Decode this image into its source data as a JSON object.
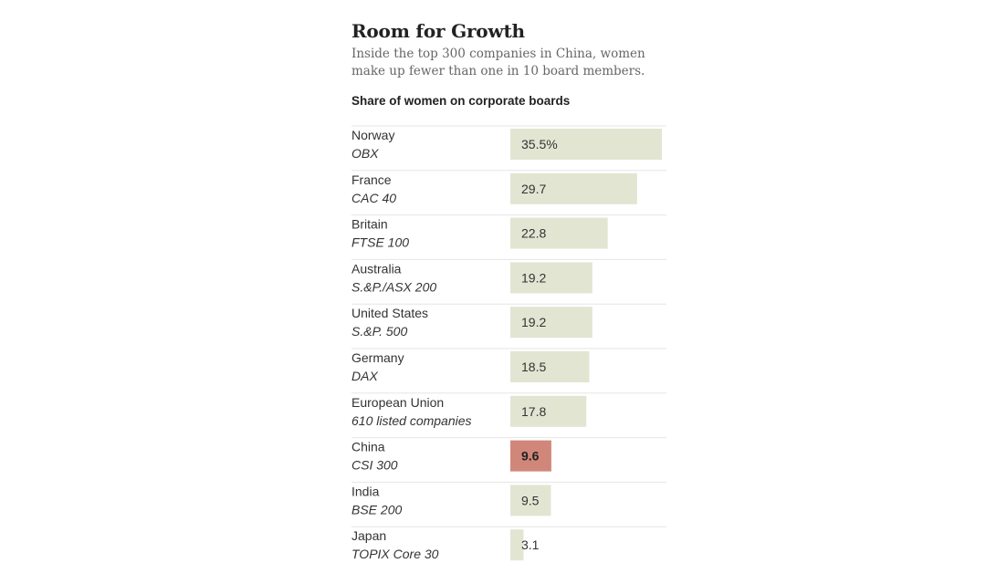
{
  "header": {
    "title": "Room for Growth",
    "subtitle": "Inside the top 300 companies in China, women make up fewer than one in 10 board members."
  },
  "colors": {
    "bar": "#e3e5d3",
    "highlight_bar": "#d0877a",
    "divider": "#e6e6e6"
  },
  "chart_data": {
    "type": "bar",
    "orientation": "horizontal",
    "ylabel": "Share of women on corporate boards",
    "unit": "%",
    "categories": [
      "Norway",
      "France",
      "Britain",
      "Australia",
      "United States",
      "Germany",
      "European Union",
      "China",
      "India",
      "Japan"
    ],
    "indexes": [
      "OBX",
      "CAC 40",
      "FTSE 100",
      "S.&P./ASX 200",
      "S.&P. 500",
      "DAX",
      "610 listed companies",
      "CSI 300",
      "BSE 200",
      "TOPIX Core 30"
    ],
    "values": [
      35.5,
      29.7,
      22.8,
      19.2,
      19.2,
      18.5,
      17.8,
      9.6,
      9.5,
      3.1
    ],
    "value_labels": [
      "35.5%",
      "29.7",
      "22.8",
      "19.2",
      "19.2",
      "18.5",
      "17.8",
      "9.6",
      "9.5",
      "3.1"
    ],
    "highlight": "China",
    "xlim": [
      0,
      35.5
    ]
  }
}
